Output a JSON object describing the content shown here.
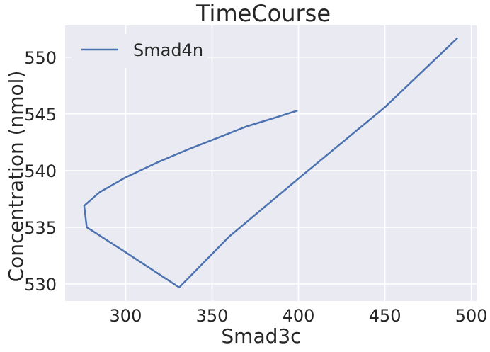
{
  "chart_data": {
    "type": "line",
    "title": "TimeCourse",
    "xlabel": "Smad3c",
    "ylabel": "Concentration (nmol)",
    "xlim": [
      265,
      503
    ],
    "ylim": [
      528.5,
      552.8
    ],
    "xticks": [
      300,
      350,
      400,
      450,
      500
    ],
    "yticks": [
      530,
      535,
      540,
      545,
      550
    ],
    "grid": true,
    "legend_position": "top-left",
    "series": [
      {
        "name": "Smad4n",
        "color": "#4c72b0",
        "points": [
          [
            399.5,
            545.3
          ],
          [
            385,
            544.6
          ],
          [
            370,
            543.9
          ],
          [
            355,
            543.0
          ],
          [
            335,
            541.8
          ],
          [
            318,
            540.7
          ],
          [
            300,
            539.4
          ],
          [
            285,
            538.1
          ],
          [
            276,
            536.9
          ],
          [
            277.5,
            535.0
          ],
          [
            300,
            532.8
          ],
          [
            331,
            529.7
          ],
          [
            360,
            534.2
          ],
          [
            400,
            539.3
          ],
          [
            450,
            545.6
          ],
          [
            492,
            551.7
          ]
        ]
      }
    ]
  }
}
